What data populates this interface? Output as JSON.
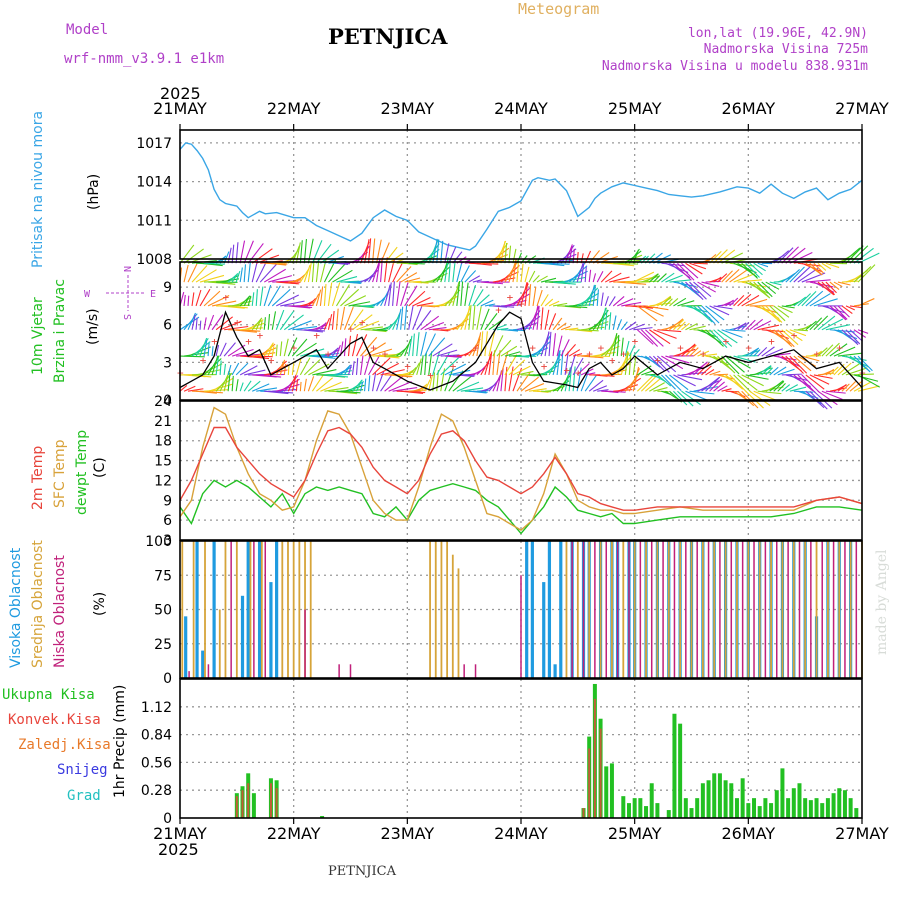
{
  "header": {
    "model_label": "Model",
    "model_name": "wrf-nmm_v3.9.1  e1km",
    "location": "PETNJICA",
    "meteogram_label": "Meteogram",
    "coords": "lon,lat (19.96E, 42.9N)",
    "elevation": "Nadmorska Visina 725m",
    "model_elevation": "Nadmorska Visina u modelu 838.931m",
    "year_top": "2025",
    "year_bottom": "2025",
    "footer_location": "PETNJICA",
    "credit": "made by Angel"
  },
  "colors": {
    "pressure": "#3aa6e6",
    "temp2m": "#e8453c",
    "sfc_temp": "#d8a23a",
    "dewpt": "#22c022",
    "cloud_high": "#1f9be0",
    "cloud_mid": "#d6a43a",
    "cloud_low": "#c0207a",
    "precip_total": "#22c022",
    "precip_conv": "#e8453c",
    "precip_frz": "#e87a2a",
    "precip_snow": "#3a3ae0",
    "precip_grad": "#22c0c0",
    "purple": "#b040c8"
  },
  "chart_data": [
    {
      "type": "line",
      "panel": "pressure",
      "ylabel_side": "Pritisak na nivou mora",
      "unit": "(hPa)",
      "x_ticks": [
        "21MAY",
        "22MAY",
        "23MAY",
        "24MAY",
        "25MAY",
        "26MAY",
        "27MAY"
      ],
      "ylim": [
        1008,
        1018
      ],
      "y_ticks": [
        1008,
        1011,
        1014,
        1017
      ],
      "grid": true,
      "series": [
        {
          "x": [
            0,
            0.05,
            0.1,
            0.15,
            0.2,
            0.25,
            0.3,
            0.35,
            0.4,
            0.45,
            0.5,
            0.55,
            0.6,
            0.7,
            0.75,
            0.85,
            1.0,
            1.1,
            1.2,
            1.3,
            1.4,
            1.5,
            1.6,
            1.7,
            1.8,
            1.9,
            2.0,
            2.1,
            2.15,
            2.25,
            2.35,
            2.45,
            2.55,
            2.6,
            2.7,
            2.8,
            2.9,
            3.0,
            3.1,
            3.15,
            3.25,
            3.3,
            3.4,
            3.45,
            3.5,
            3.6,
            3.65,
            3.7,
            3.8,
            3.9,
            4.0,
            4.1,
            4.2,
            4.3,
            4.4,
            4.5,
            4.6,
            4.75,
            4.9,
            5.0,
            5.1,
            5.2,
            5.3,
            5.4,
            5.5,
            5.6,
            5.7,
            5.8,
            5.9,
            6.0
          ],
          "values": [
            1016.5,
            1017.0,
            1016.9,
            1016.4,
            1015.8,
            1014.9,
            1013.4,
            1012.6,
            1012.3,
            1012.2,
            1012.1,
            1011.6,
            1011.2,
            1011.7,
            1011.5,
            1011.6,
            1011.2,
            1011.2,
            1010.6,
            1010.2,
            1009.8,
            1009.4,
            1010.0,
            1011.2,
            1011.8,
            1011.3,
            1011.0,
            1010.1,
            1009.9,
            1009.5,
            1009.1,
            1008.9,
            1008.7,
            1009.0,
            1010.3,
            1011.7,
            1012.0,
            1012.5,
            1014.1,
            1014.3,
            1014.1,
            1014.2,
            1013.3,
            1012.3,
            1011.3,
            1012.0,
            1012.7,
            1013.1,
            1013.6,
            1013.9,
            1013.7,
            1013.5,
            1013.3,
            1013.0,
            1012.9,
            1012.8,
            1012.9,
            1013.2,
            1013.6,
            1013.5,
            1013.1,
            1013.8,
            1013.1,
            1012.7,
            1013.2,
            1013.5,
            1012.6,
            1013.1,
            1013.4,
            1014.1
          ]
        }
      ]
    },
    {
      "type": "line",
      "panel": "wind",
      "ylabel_side_1": "10m Vjetar",
      "ylabel_side_2": "Brzina i Pravac",
      "unit": "(m/s)",
      "compass": {
        "n": "N",
        "e": "E",
        "s": "S",
        "w": "W"
      },
      "ylim": [
        0,
        11
      ],
      "y_ticks": [
        0,
        3,
        6,
        9
      ],
      "grid": true,
      "series": [
        {
          "name": "speed",
          "x": [
            0,
            0.2,
            0.3,
            0.4,
            0.5,
            0.6,
            0.7,
            0.8,
            1.0,
            1.2,
            1.3,
            1.5,
            1.6,
            1.7,
            1.8,
            2.0,
            2.2,
            2.4,
            2.6,
            2.8,
            2.9,
            3.0,
            3.1,
            3.2,
            3.4,
            3.5,
            3.6,
            3.7,
            3.8,
            3.9,
            4.0,
            4.2,
            4.4,
            4.6,
            4.8,
            5.0,
            5.2,
            5.4,
            5.6,
            5.8,
            6.0
          ],
          "values": [
            1.0,
            2.0,
            3.5,
            7.0,
            5.0,
            3.5,
            4.0,
            2.0,
            3.0,
            4.0,
            2.5,
            4.5,
            5.0,
            3.0,
            2.5,
            1.5,
            0.8,
            1.5,
            3.0,
            6.0,
            7.0,
            6.5,
            3.0,
            1.5,
            1.2,
            1.0,
            2.5,
            3.0,
            2.0,
            2.5,
            3.5,
            2.0,
            3.0,
            2.5,
            3.5,
            3.0,
            3.5,
            4.0,
            2.5,
            3.0,
            1.0
          ]
        }
      ]
    },
    {
      "type": "line",
      "panel": "temperature",
      "ylabel_side_1": "2m Temp",
      "ylabel_side_2": "SFC Temp",
      "ylabel_side_3": "dewpt Temp",
      "unit": "(C)",
      "ylim": [
        3,
        24
      ],
      "y_ticks": [
        3,
        6,
        9,
        12,
        15,
        18,
        21,
        24
      ],
      "grid": true,
      "series": [
        {
          "name": "2m Temp",
          "x": [
            0,
            0.1,
            0.2,
            0.3,
            0.4,
            0.5,
            0.6,
            0.7,
            0.8,
            0.9,
            1.0,
            1.1,
            1.2,
            1.3,
            1.4,
            1.5,
            1.6,
            1.7,
            1.8,
            1.9,
            2.0,
            2.1,
            2.2,
            2.3,
            2.4,
            2.5,
            2.6,
            2.7,
            2.8,
            2.9,
            3.0,
            3.1,
            3.2,
            3.3,
            3.4,
            3.5,
            3.6,
            3.7,
            3.8,
            3.9,
            4.0,
            4.2,
            4.4,
            4.6,
            4.8,
            5.0,
            5.2,
            5.4,
            5.6,
            5.8,
            6.0
          ],
          "values": [
            9,
            12,
            16,
            20,
            20,
            17,
            15,
            13,
            11.5,
            10.5,
            9.5,
            12,
            16,
            19.5,
            20,
            19,
            17,
            14,
            12,
            11,
            10,
            12,
            16,
            19,
            19.5,
            18,
            15,
            12.5,
            12,
            11,
            10,
            11,
            13,
            15.5,
            13,
            10,
            9.5,
            8.5,
            8,
            7.5,
            7.5,
            8,
            8,
            8,
            8,
            8,
            8,
            8,
            9,
            9.5,
            8.5
          ]
        },
        {
          "name": "SFC Temp",
          "x": [
            0,
            0.1,
            0.2,
            0.3,
            0.4,
            0.5,
            0.6,
            0.7,
            0.8,
            0.9,
            1.0,
            1.1,
            1.2,
            1.3,
            1.4,
            1.5,
            1.6,
            1.7,
            1.8,
            1.9,
            2.0,
            2.1,
            2.2,
            2.3,
            2.4,
            2.5,
            2.6,
            2.7,
            2.8,
            2.9,
            3.0,
            3.1,
            3.2,
            3.3,
            3.4,
            3.5,
            3.6,
            3.7,
            3.8,
            3.9,
            4.0,
            4.2,
            4.4,
            4.6,
            4.8,
            5.0,
            5.2,
            5.4,
            5.6,
            5.8,
            6.0
          ],
          "values": [
            6.5,
            9,
            17,
            23,
            22,
            17,
            13,
            10,
            9,
            7.5,
            8,
            12,
            18,
            22.5,
            22,
            19,
            14,
            9,
            7,
            6,
            6,
            11,
            17,
            22,
            21,
            17,
            12,
            7,
            6.5,
            5.5,
            4.5,
            6,
            10,
            16,
            13,
            9,
            8,
            7.5,
            7.5,
            7,
            7,
            7.5,
            8,
            7.5,
            7.5,
            7.5,
            7.5,
            7.5,
            9,
            9.5,
            8.5
          ]
        },
        {
          "name": "dewpt Temp",
          "x": [
            0,
            0.1,
            0.2,
            0.3,
            0.4,
            0.5,
            0.6,
            0.7,
            0.8,
            0.9,
            1.0,
            1.1,
            1.2,
            1.3,
            1.4,
            1.5,
            1.6,
            1.7,
            1.8,
            1.9,
            2.0,
            2.1,
            2.2,
            2.3,
            2.4,
            2.5,
            2.6,
            2.7,
            2.8,
            2.9,
            3.0,
            3.1,
            3.2,
            3.3,
            3.4,
            3.5,
            3.6,
            3.7,
            3.8,
            3.9,
            4.0,
            4.2,
            4.4,
            4.6,
            4.8,
            5.0,
            5.2,
            5.4,
            5.6,
            5.8,
            6.0
          ],
          "values": [
            8,
            5.5,
            10,
            12,
            11,
            12,
            11,
            9.5,
            8,
            10,
            7,
            10,
            11,
            10.5,
            11,
            10.5,
            10,
            7,
            6.5,
            8,
            6,
            9,
            10.5,
            11,
            11.5,
            11,
            10.5,
            9,
            8,
            6,
            4,
            6,
            8,
            11,
            9.5,
            7.5,
            7,
            6.5,
            7,
            5.5,
            5.5,
            6,
            6.5,
            6.5,
            6.5,
            6.5,
            6.5,
            7,
            8,
            8,
            7.5
          ]
        }
      ]
    },
    {
      "type": "bar",
      "panel": "cloud",
      "ylabel_side_1": "Visoka Oblacnost",
      "ylabel_side_2": "Srednja Oblacnost",
      "ylabel_side_3": "Niska Oblacnost",
      "unit": "(%)",
      "ylim": [
        0,
        100
      ],
      "y_ticks": [
        0,
        25,
        50,
        75,
        100
      ],
      "grid": true,
      "series": [
        {
          "name": "Visoka Oblacnost",
          "x": [
            0.05,
            0.15,
            0.2,
            0.3,
            0.55,
            0.6,
            0.7,
            0.8,
            0.85,
            3.05,
            3.1,
            3.2,
            3.25,
            3.3,
            3.35,
            3.45,
            3.55,
            3.6,
            3.7,
            3.8,
            3.85,
            3.95,
            4.0,
            4.1,
            4.2,
            4.3,
            4.4,
            4.5,
            4.6,
            4.7,
            4.8,
            4.9,
            5.0,
            5.1,
            5.2,
            5.3,
            5.4,
            5.5,
            5.6,
            5.7,
            5.8,
            5.9
          ],
          "values": [
            45,
            100,
            20,
            100,
            60,
            100,
            100,
            70,
            100,
            100,
            100,
            70,
            100,
            10,
            100,
            100,
            100,
            100,
            100,
            100,
            100,
            100,
            100,
            100,
            100,
            100,
            100,
            100,
            100,
            100,
            100,
            100,
            100,
            100,
            100,
            100,
            100,
            100,
            45,
            100,
            100,
            100
          ]
        },
        {
          "name": "Srednja Oblacnost",
          "x": [
            0.02,
            0.12,
            0.22,
            0.35,
            0.4,
            0.5,
            0.62,
            0.72,
            0.9,
            0.95,
            1.0,
            1.05,
            1.1,
            1.15,
            2.2,
            2.25,
            2.3,
            2.35,
            2.4,
            2.45,
            3.4,
            3.5,
            3.6,
            3.7,
            3.8,
            3.9,
            4.0,
            4.1,
            4.2,
            4.3,
            4.4,
            4.5,
            4.6,
            4.7,
            4.8,
            4.9,
            5.0,
            5.1,
            5.2,
            5.3,
            5.4,
            5.5,
            5.6,
            5.7,
            5.8,
            5.9,
            6.0
          ],
          "values": [
            100,
            100,
            100,
            50,
            100,
            100,
            100,
            100,
            100,
            100,
            100,
            100,
            100,
            100,
            100,
            100,
            100,
            100,
            90,
            80,
            100,
            100,
            100,
            100,
            100,
            100,
            100,
            100,
            100,
            100,
            100,
            100,
            100,
            100,
            100,
            100,
            100,
            100,
            100,
            100,
            100,
            100,
            100,
            100,
            100,
            100,
            100
          ]
        },
        {
          "name": "Niska Oblacnost",
          "x": [
            0.08,
            0.25,
            0.45,
            0.65,
            0.75,
            1.1,
            1.4,
            1.5,
            2.5,
            2.6,
            3.0,
            3.45,
            3.55,
            3.65,
            3.75,
            3.85,
            3.95,
            4.05,
            4.15,
            4.25,
            4.35,
            4.45,
            4.55,
            4.65,
            4.75,
            4.85,
            4.95,
            5.05,
            5.15,
            5.25,
            5.35,
            5.45,
            5.55,
            5.65,
            5.75,
            5.85,
            5.95
          ],
          "values": [
            5,
            10,
            100,
            100,
            100,
            50,
            10,
            10,
            10,
            10,
            75,
            100,
            100,
            100,
            100,
            100,
            100,
            100,
            100,
            100,
            100,
            100,
            100,
            100,
            100,
            100,
            100,
            100,
            100,
            100,
            100,
            100,
            100,
            100,
            100,
            100,
            100
          ]
        }
      ]
    },
    {
      "type": "bar",
      "panel": "precip",
      "legend": [
        "Ukupna Kisa",
        "Konvek.Kisa",
        "Zaledj.Kisa",
        "Snijeg",
        "Grad"
      ],
      "ylabel_side": "1hr Precip (mm)",
      "ylim": [
        0,
        1.4
      ],
      "y_ticks": [
        0,
        0.28,
        0.56,
        0.84,
        1.12
      ],
      "grid": true,
      "series": [
        {
          "name": "Ukupna Kisa",
          "x": [
            0.5,
            0.55,
            0.6,
            0.65,
            0.8,
            0.85,
            1.25,
            3.55,
            3.6,
            3.65,
            3.7,
            3.75,
            3.8,
            3.9,
            3.95,
            4.0,
            4.05,
            4.1,
            4.15,
            4.2,
            4.3,
            4.35,
            4.4,
            4.45,
            4.5,
            4.55,
            4.6,
            4.65,
            4.7,
            4.75,
            4.8,
            4.85,
            4.9,
            4.95,
            5.0,
            5.05,
            5.1,
            5.15,
            5.2,
            5.25,
            5.3,
            5.35,
            5.4,
            5.45,
            5.5,
            5.55,
            5.6,
            5.65,
            5.7,
            5.75,
            5.8,
            5.85,
            5.9,
            5.95
          ],
          "values": [
            0.25,
            0.32,
            0.45,
            0.25,
            0.4,
            0.38,
            0.02,
            0.1,
            0.82,
            1.35,
            1.0,
            0.52,
            0.55,
            0.22,
            0.15,
            0.2,
            0.2,
            0.12,
            0.35,
            0.15,
            0.08,
            1.05,
            0.95,
            0.2,
            0.1,
            0.2,
            0.35,
            0.38,
            0.45,
            0.45,
            0.38,
            0.35,
            0.2,
            0.4,
            0.15,
            0.2,
            0.12,
            0.2,
            0.15,
            0.28,
            0.5,
            0.2,
            0.3,
            0.35,
            0.2,
            0.18,
            0.2,
            0.15,
            0.2,
            0.25,
            0.3,
            0.28,
            0.2,
            0.1
          ]
        },
        {
          "name": "Konvek.Kisa",
          "x": [
            0.5,
            0.55,
            0.6,
            0.8,
            0.85,
            3.55,
            3.6,
            3.65,
            3.7
          ],
          "values": [
            0.22,
            0.28,
            0.35,
            0.35,
            0.3,
            0.1,
            0.7,
            1.2,
            0.9
          ]
        }
      ]
    }
  ]
}
